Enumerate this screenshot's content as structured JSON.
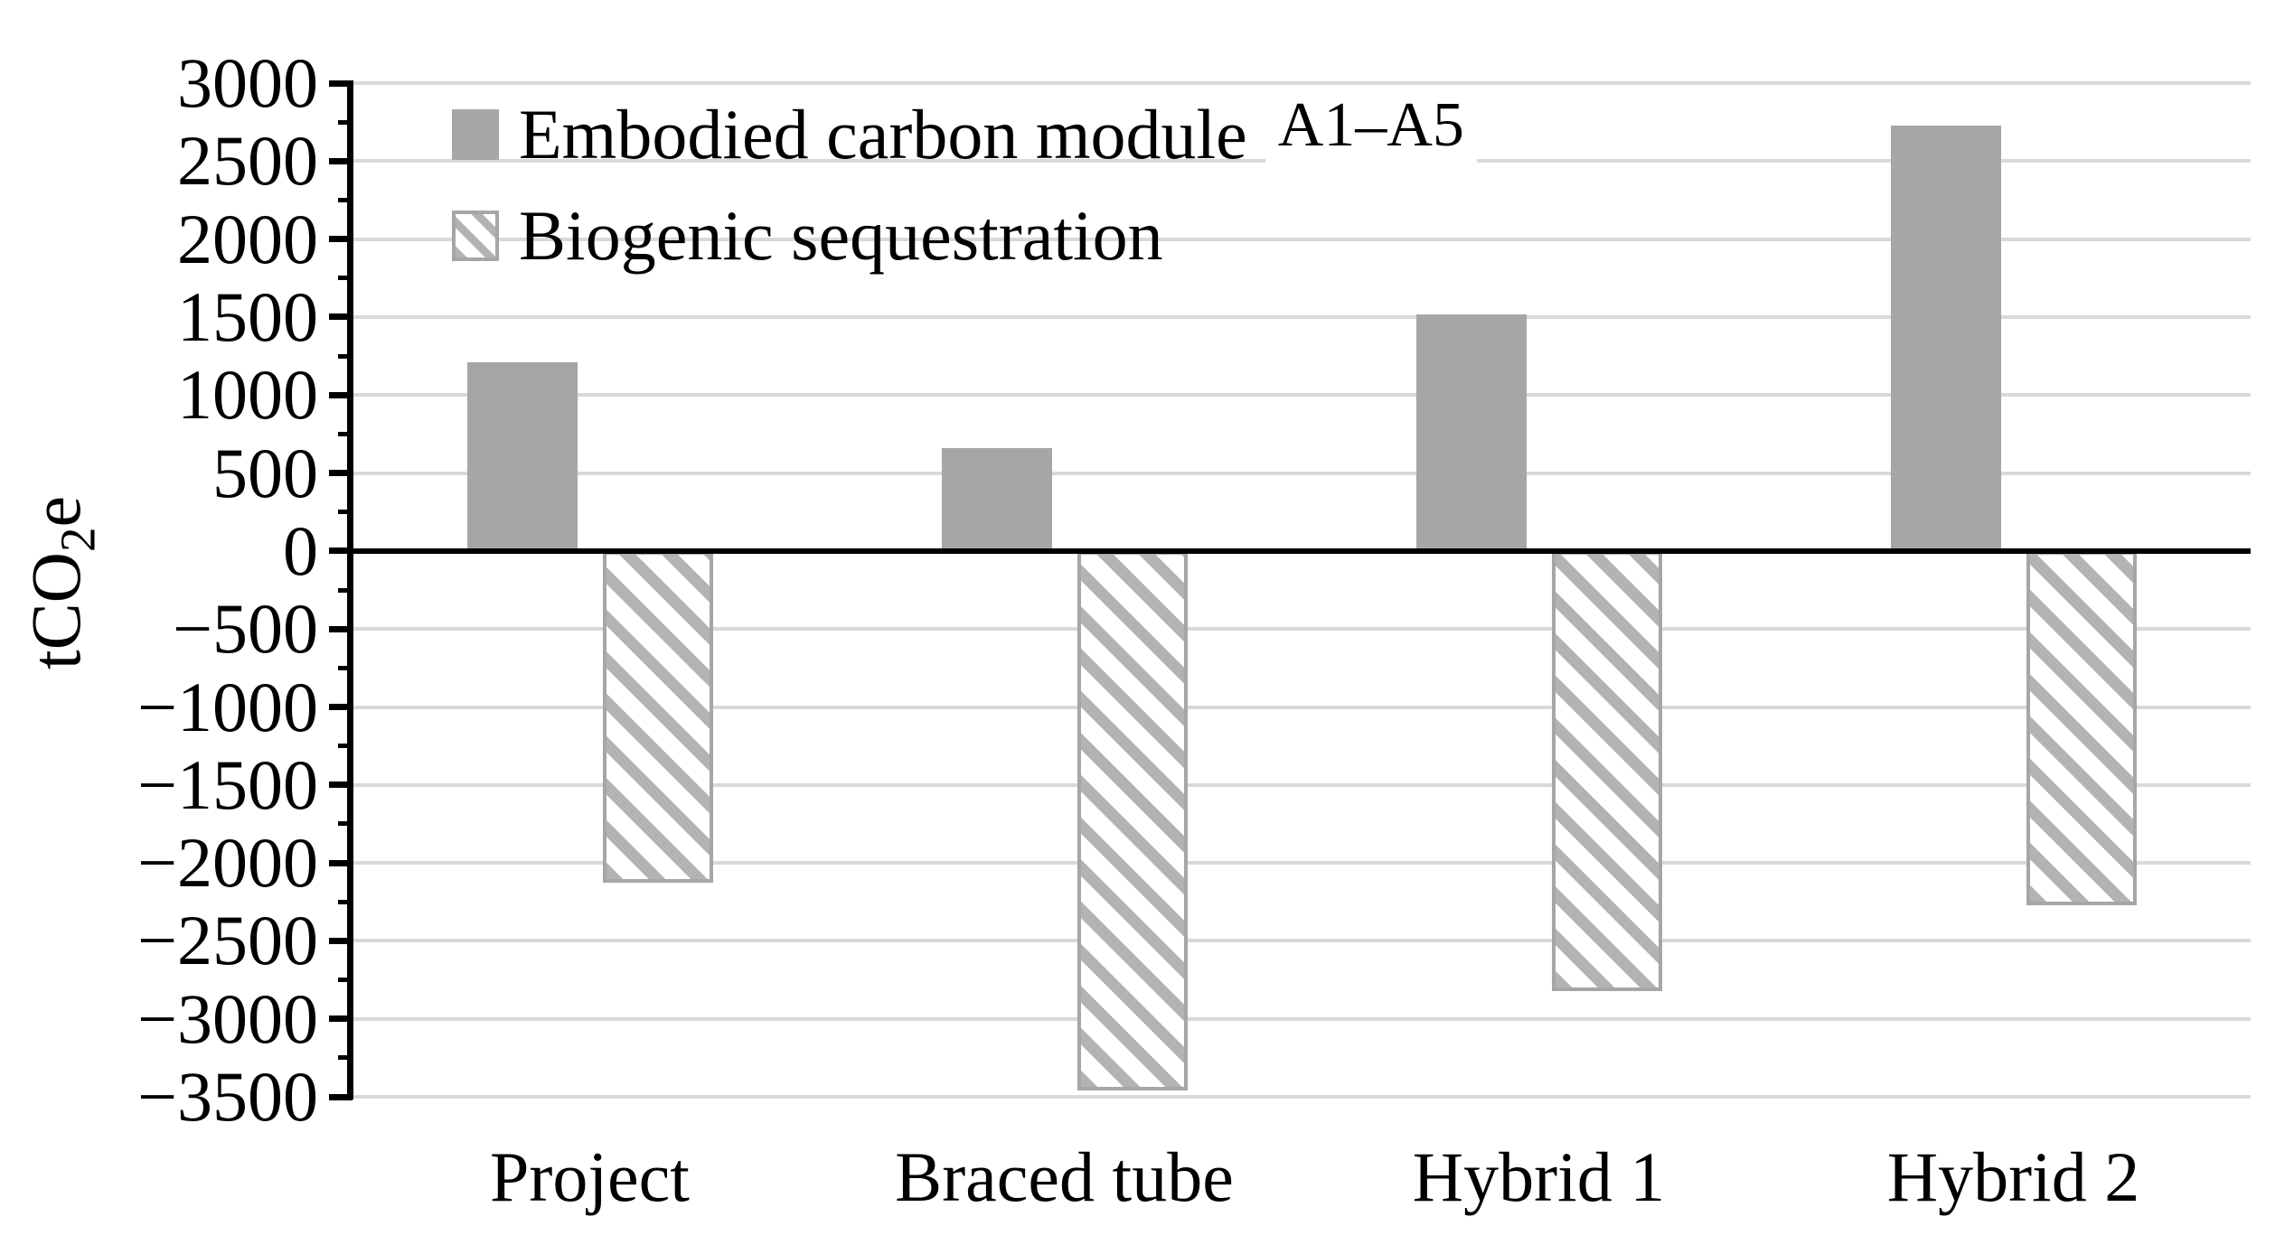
{
  "chart_data": {
    "type": "bar",
    "categories": [
      "Project",
      "Braced tube",
      "Hybrid 1",
      "Hybrid 2"
    ],
    "series": [
      {
        "name": "Embodied carbon module A1–A5",
        "style": "solid",
        "values": [
          1210,
          660,
          1520,
          2730
        ]
      },
      {
        "name": "Biogenic sequestration",
        "style": "hatch",
        "values": [
          -2130,
          -3460,
          -2820,
          -2270
        ]
      }
    ],
    "title": "",
    "xlabel": "",
    "ylabel": "tCO2e",
    "ylim": [
      -3500,
      3000
    ],
    "ytick_major_step": 500,
    "ytick_minor_step": 250,
    "y_tick_labels": [
      "3000",
      "2500",
      "2000",
      "1500",
      "1000",
      "500",
      "0",
      "−500",
      "−1000",
      "−1500",
      "−2000",
      "−2500",
      "−3000",
      "−3500"
    ],
    "grid": true,
    "legend_position": "top-left-inside"
  },
  "axis": {
    "y_title": {
      "pre": "tCO",
      "sub": "2",
      "post": "e"
    }
  },
  "legend": {
    "items": [
      {
        "label": "Embodied carbon module",
        "suffix": "A1–A5",
        "swatch": "solid-gray-square"
      },
      {
        "label": "Biogenic sequestration",
        "suffix": "",
        "swatch": "diagonal-hatch-square"
      }
    ]
  },
  "colors": {
    "bar_solid": "#a6a6a6",
    "hatch_stripe": "#b3b3b3",
    "hatch_border": "#a6a6a6",
    "gridline": "#d9d9d9",
    "axis": "#000000",
    "text": "#000000",
    "background": "#ffffff"
  }
}
